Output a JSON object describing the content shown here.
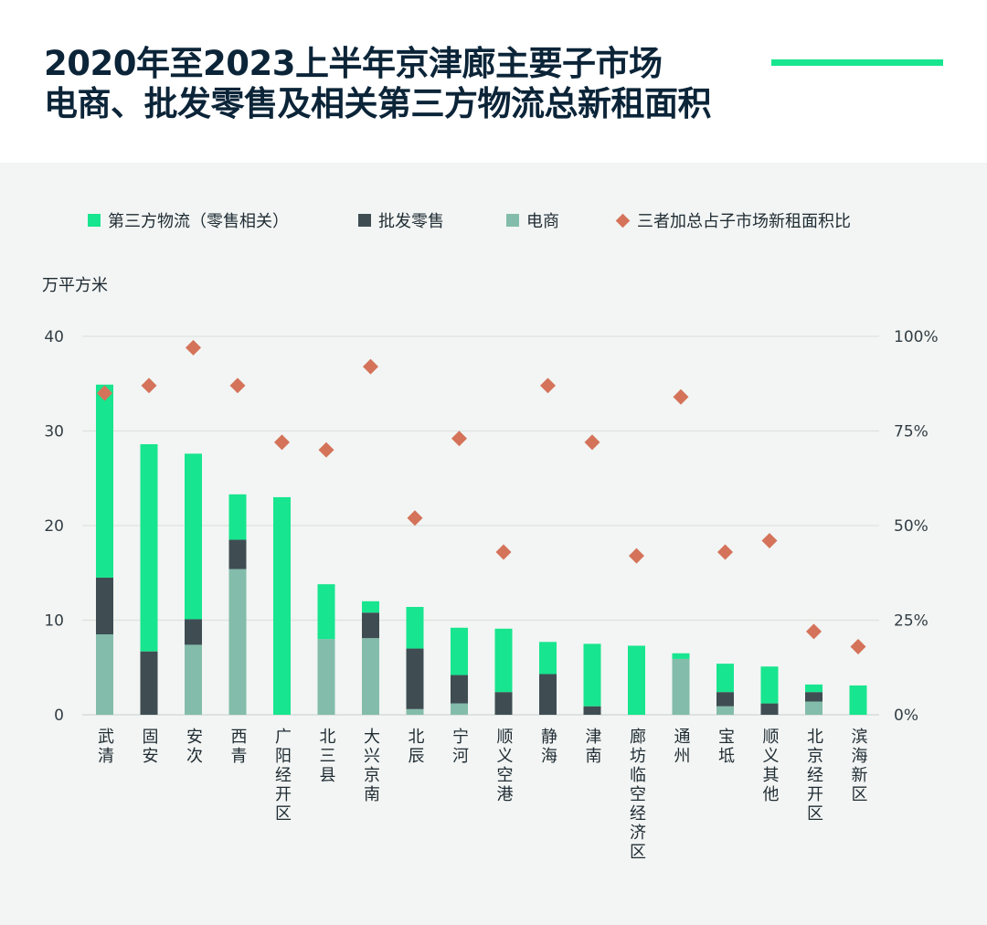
{
  "header": {
    "title_line1": "2020年至2023上半年京津廊主要子市场",
    "title_line2": "电商、批发零售及相关第三方物流总新租面积"
  },
  "colors": {
    "third_party": "#18e58f",
    "wholesale": "#3f4d53",
    "ecommerce": "#83bcaa",
    "ratio": "#d4735a",
    "accent": "#18e58f",
    "title": "#0b2438"
  },
  "legend": {
    "third_party": "第三方物流（零售相关）",
    "wholesale": "批发零售",
    "ecommerce": "电商",
    "ratio": "三者加总占子市场新租面积比"
  },
  "chart_data": {
    "type": "bar",
    "stacked": true,
    "y_unit_label": "万平方米",
    "ylim": [
      0,
      40
    ],
    "y_ticks": [
      "0",
      "10",
      "20",
      "30",
      "40"
    ],
    "y2lim": [
      0,
      100
    ],
    "y2_ticks": [
      "0%",
      "25%",
      "50%",
      "75%",
      "100%"
    ],
    "grid": true,
    "legend_position": "top",
    "categories": [
      "武清",
      "固安",
      "安次",
      "西青",
      "广阳经开区",
      "北三县",
      "大兴京南",
      "北辰",
      "宁河",
      "顺义空港",
      "静海",
      "津南",
      "廊坊临空经济区",
      "通州",
      "宝坻",
      "顺义其他",
      "北京经开区",
      "滨海新区"
    ],
    "series": [
      {
        "name": "电商",
        "values": [
          8.5,
          0,
          7.4,
          15.4,
          0,
          8.0,
          8.1,
          0.6,
          1.2,
          0,
          0,
          0,
          0,
          5.9,
          0.9,
          0,
          1.4,
          0
        ]
      },
      {
        "name": "批发零售",
        "values": [
          6.0,
          6.7,
          2.7,
          3.1,
          0,
          0,
          2.7,
          6.4,
          3.0,
          2.4,
          4.3,
          0.9,
          0,
          0,
          1.5,
          1.2,
          1.0,
          0
        ]
      },
      {
        "name": "第三方物流（零售相关）",
        "values": [
          20.4,
          21.9,
          17.5,
          4.8,
          23.0,
          5.8,
          1.2,
          4.4,
          5.0,
          6.7,
          3.4,
          6.6,
          7.3,
          0.6,
          3.0,
          3.9,
          0.8,
          3.1
        ]
      },
      {
        "name": "三者加总占子市场新租面积比",
        "axis": "right",
        "values": [
          85,
          87,
          97,
          87,
          72,
          70,
          92,
          52,
          73,
          43,
          87,
          72,
          42,
          84,
          43,
          46,
          22,
          18
        ]
      }
    ]
  }
}
